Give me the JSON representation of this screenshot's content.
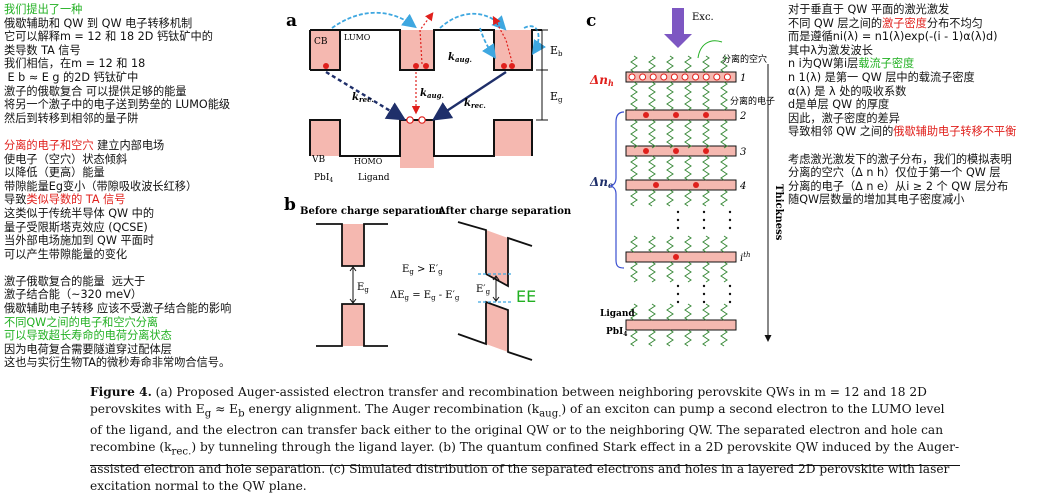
{
  "left_notes": {
    "lines": [
      {
        "text": "我们提出了一种",
        "color": "green"
      },
      {
        "text": "俄歇辅助和 QW 到 QW 电子转移机制",
        "color": "black"
      },
      {
        "text": "它可以解释m = 12 和 18 2D 钙钛矿中的",
        "color": "black"
      },
      {
        "text": "类导数 TA 信号",
        "color": "black"
      },
      {
        "text": "我们相信，在m = 12 和 18",
        "color": "black"
      },
      {
        "text": " E b ≈ E g 的2D 钙钛矿中",
        "color": "black"
      },
      {
        "text": "激子的俄歇复合 可以提供足够的能量",
        "color": "black"
      },
      {
        "text": "将另一个激子中的电子送到势垒的 LUMO能级",
        "color": "black"
      },
      {
        "text": "然后到转移到相邻的量子阱",
        "color": "black"
      },
      {
        "text": "",
        "color": "black"
      },
      {
        "text": "分离的电子和空穴",
        "color": "red",
        "suffix": " 建立内部电场"
      },
      {
        "text": "使电子（空穴）状态倾斜",
        "color": "black"
      },
      {
        "text": "以降低（更高）能量",
        "color": "black"
      },
      {
        "text": "带隙能量Eg变小（带隙吸收波长红移）",
        "color": "black"
      },
      {
        "text": "导致",
        "color": "black",
        "red_part": "类似导数的 TA 信号"
      },
      {
        "text": "这类似于传统半导体 QW 中的",
        "color": "black"
      },
      {
        "text": "量子受限斯塔克效应 (QCSE)",
        "color": "black"
      },
      {
        "text": "当外部电场施加到 QW 平面时",
        "color": "black"
      },
      {
        "text": "可以产生带隙能量的变化",
        "color": "black"
      },
      {
        "text": "",
        "color": "black"
      },
      {
        "text": "激子俄歇复合的能量  远大于",
        "color": "black"
      },
      {
        "text": "激子结合能（~320 meV）",
        "color": "black"
      },
      {
        "text": "俄歇辅助电子转移 应该不受激子结合能的影响",
        "color": "black"
      },
      {
        "text": "不同QW之间的电子和空穴分离",
        "color": "green"
      },
      {
        "text": "可以导致超长寿命的电荷分离状态",
        "color": "green"
      },
      {
        "text": "因为电荷复合需要隧道穿过配体层",
        "color": "black"
      },
      {
        "text": "这也与实衍生物TA的微秒寿命非常吻合信号。",
        "color": "black"
      }
    ]
  },
  "right_notes": {
    "lines": [
      {
        "text": "对于垂直于 QW 平面的激光激发",
        "color": "black"
      },
      {
        "text": "不同 QW 层之间的",
        "color": "black",
        "red_part": "激子密度",
        "suffix": "分布不均匀"
      },
      {
        "text": "而是遵循ni(λ) = n1(λ)exp(-(i - 1)α(λ)d)",
        "color": "black"
      },
      {
        "text": "其中λ为激发波长",
        "color": "black"
      },
      {
        "text": "n i为QW第i层",
        "color": "black",
        "green_part": "载流子密度"
      },
      {
        "text": "n 1(λ) 是第一 QW 层中的载流子密度",
        "color": "black"
      },
      {
        "text": "α(λ) 是 λ 处的吸收系数",
        "color": "black"
      },
      {
        "text": "d是单层 QW 的厚度",
        "color": "black"
      },
      {
        "text": "因此，激子密度的差异",
        "color": "black"
      },
      {
        "text": "导致相邻 QW 之间的",
        "color": "black",
        "red_part": "俄歇辅助电子转移不平衡"
      },
      {
        "text": "",
        "color": "black"
      },
      {
        "text": "考虑激光激发下的激子分布，我们的模拟表明",
        "color": "black"
      },
      {
        "text": "分离的空穴（Δ n h）仅位于第一个 QW 层",
        "color": "black"
      },
      {
        "text": "分离的电子（Δ n e）从i ≥ 2 个 QW 层分布",
        "color": "black"
      },
      {
        "text": "随QW层数量的增加其电子密度减小",
        "color": "black"
      }
    ]
  },
  "panel_a": {
    "letter": "a",
    "cb": "CB",
    "vb": "VB",
    "lumo": "LUMO",
    "homo": "HOMO",
    "pbi4": "PbI",
    "pbi4_sub": "4",
    "ligand": "Ligand",
    "kaug1": "k",
    "kaug1_sub": "aug.",
    "kaug2": "k",
    "kaug2_sub": "aug.",
    "krec1": "k",
    "krec1_sub": "rec.",
    "krec2": "k",
    "krec2_sub": "rec.",
    "eb": "E",
    "eb_sub": "b",
    "eg": "E",
    "eg_sub": "g"
  },
  "panel_b": {
    "letter": "b",
    "before": "Before charge separation",
    "after": "After charge separation",
    "eg_left": "E",
    "eg_left_sub": "g",
    "eg_right": "E′",
    "eg_right_sub": "g",
    "ineq": "E",
    "ineq_rest": " > E′",
    "delta": "ΔE",
    "delta_rest": " = E",
    "delta_rest2": " - E′",
    "handwriting": "EE"
  },
  "panel_c": {
    "letter": "c",
    "exc": "Exc.",
    "dnh": "Δn",
    "dnh_sub": "h",
    "dne": "Δn",
    "dne_sub": "e",
    "hole_note": "分离的空穴",
    "electron_note": "分离的电子",
    "layer_labels": [
      "1",
      "2",
      "3",
      "4",
      "i"
    ],
    "layer_i_sup": "th",
    "thickness": "Thickness",
    "ligand": "Ligand",
    "pbi4": "PbI",
    "pbi4_sub": "4"
  },
  "caption": {
    "fig": "Figure 4.",
    "text": " (a) Proposed Auger-assisted electron transfer and recombination between neighboring perovskite QWs in m = 12 and 18 2D perovskites with E",
    "t1_sub": "g",
    "t2": " ≈ E",
    "t2_sub": "b",
    "t3": " energy alignment. The Auger recombination (k",
    "t3_sub": "aug.",
    "t4": ") of an exciton can pump a second electron to the LUMO level of the ligand, and the electron can transfer back either to the original QW or to the neighboring QW. The separated electron and hole can recombine (k",
    "t4_sub": "rec.",
    "t5": ") by tunneling through the ligand layer. (b) The quantum confined Stark effect in a 2D perovskite QW induced by the Auger-assisted electron and hole separation. (c) Simulated distribution of the separated electrons and holes in a layered 2D perovskite with laser excitation normal to the QW plane."
  },
  "colors": {
    "pink": "#f5b8b0",
    "red_dot": "#e0201c",
    "navy": "#1f2f6a",
    "cyan": "#3ea7e0",
    "purple": "#7d57c2",
    "green_hand": "#22b022"
  }
}
